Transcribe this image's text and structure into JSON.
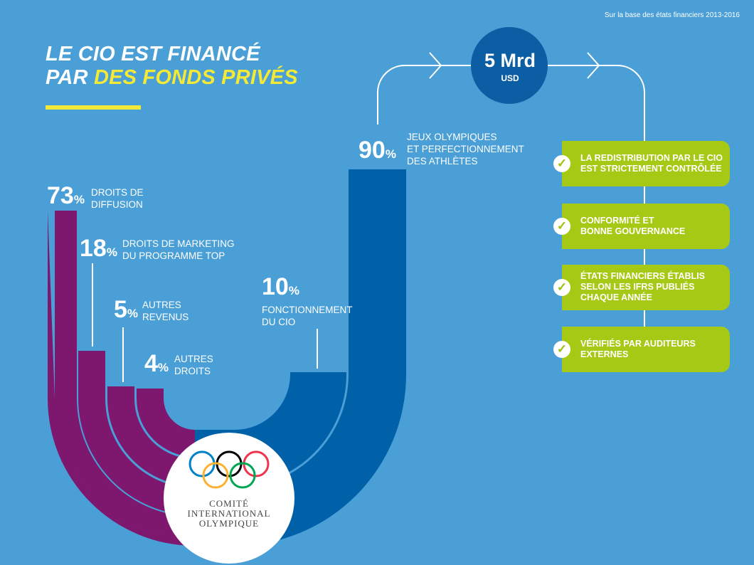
{
  "header": {
    "note": "Sur la base des états financiers 2013-2016",
    "title_line1": "LE CIO EST FINANCÉ",
    "title_line2_prefix": "PAR ",
    "title_line2_highlight": "DES FONDS PRIVÉS"
  },
  "sources": [
    {
      "value": "73",
      "unit": "%",
      "label_line1": "DROITS DE",
      "label_line2": "DIFFUSION"
    },
    {
      "value": "18",
      "unit": "%",
      "label_line1": "DROITS DE MARKETING",
      "label_line2": "DU PROGRAMME TOP"
    },
    {
      "value": "5",
      "unit": "%",
      "label_line1": "AUTRES",
      "label_line2": "REVENUS"
    },
    {
      "value": "4",
      "unit": "%",
      "label_line1": "AUTRES",
      "label_line2": "DROITS"
    }
  ],
  "uses": [
    {
      "value": "10",
      "unit": "%",
      "label_line1": "FONCTIONNEMENT",
      "label_line2": "DU CIO"
    },
    {
      "value": "90",
      "unit": "%",
      "label_line1": "JEUX OLYMPIQUES",
      "label_line2": "ET PERFECTIONNEMENT",
      "label_line3": "DES ATHLÈTES"
    }
  ],
  "total": {
    "amount": "5 Mrd",
    "currency": "USD"
  },
  "controls": [
    {
      "line1": "LA REDISTRIBUTION PAR LE CIO",
      "line2": "EST STRICTEMENT CONTRÔLÉE"
    },
    {
      "line1": "CONFORMITÉ ET",
      "line2": "BONNE GOUVERNANCE"
    },
    {
      "line1": "ÉTATS FINANCIERS ÉTABLIS",
      "line2": "SELON LES IFRS PUBLIÉS",
      "line3": "CHAQUE ANNÉE"
    },
    {
      "line1": "VÉRIFIÉS PAR AUDITEURS",
      "line2": "EXTERNES"
    }
  ],
  "check_symbol": "✓",
  "logo": {
    "line1": "COMITÉ",
    "line2": "INTERNATIONAL",
    "line3": "OLYMPIQUE"
  },
  "colors": {
    "background": "#4a9fd6",
    "revenue": "#7e176e",
    "spending": "#0060a8",
    "accent_yellow": "#f4e936",
    "control_green": "#a5c914",
    "total_circle": "#0b5ea3"
  }
}
